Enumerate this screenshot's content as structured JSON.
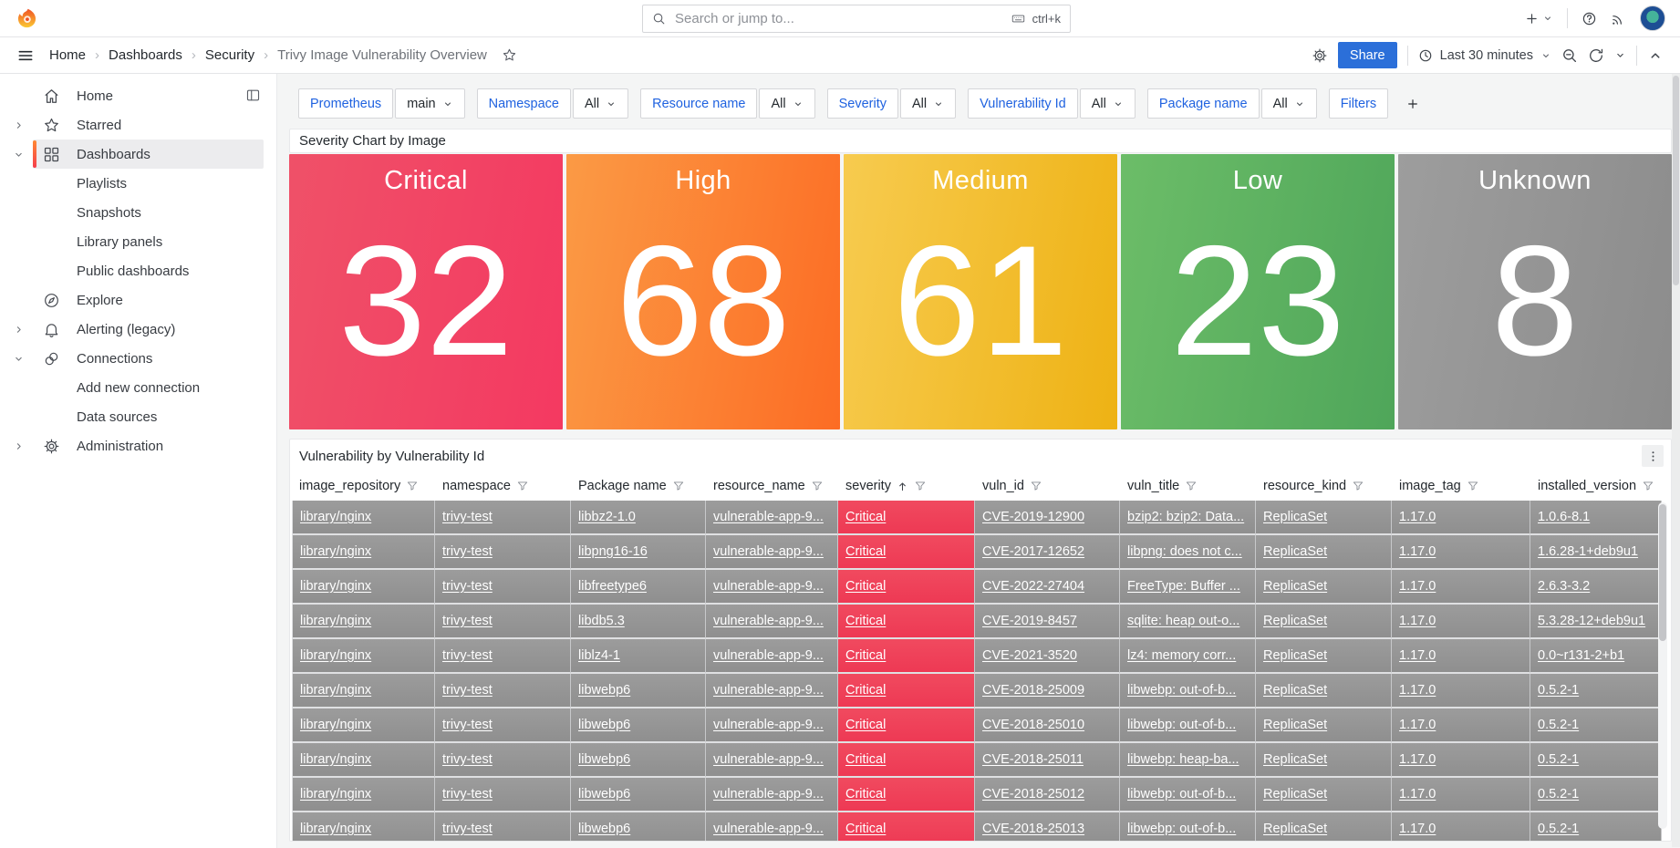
{
  "topnav": {
    "search_placeholder": "Search or jump to...",
    "search_shortcut": "ctrl+k"
  },
  "breadcrumb": [
    "Home",
    "Dashboards",
    "Security",
    "Trivy Image Vulnerability Overview"
  ],
  "toolbar": {
    "share_label": "Share",
    "time_range": "Last 30 minutes"
  },
  "sidebar": {
    "items": [
      {
        "label": "Home",
        "icon": "home-icon",
        "chevron": null,
        "active": false,
        "child": false
      },
      {
        "label": "Starred",
        "icon": "star-icon",
        "chevron": "right",
        "active": false,
        "child": false
      },
      {
        "label": "Dashboards",
        "icon": "apps-icon",
        "chevron": "down",
        "active": true,
        "child": false
      },
      {
        "label": "Playlists",
        "icon": null,
        "chevron": null,
        "active": false,
        "child": true
      },
      {
        "label": "Snapshots",
        "icon": null,
        "chevron": null,
        "active": false,
        "child": true
      },
      {
        "label": "Library panels",
        "icon": null,
        "chevron": null,
        "active": false,
        "child": true
      },
      {
        "label": "Public dashboards",
        "icon": null,
        "chevron": null,
        "active": false,
        "child": true
      },
      {
        "label": "Explore",
        "icon": "compass-icon",
        "chevron": null,
        "active": false,
        "child": false
      },
      {
        "label": "Alerting (legacy)",
        "icon": "bell-icon",
        "chevron": "right",
        "active": false,
        "child": false
      },
      {
        "label": "Connections",
        "icon": "link-icon",
        "chevron": "down",
        "active": false,
        "child": false
      },
      {
        "label": "Add new connection",
        "icon": null,
        "chevron": null,
        "active": false,
        "child": true
      },
      {
        "label": "Data sources",
        "icon": null,
        "chevron": null,
        "active": false,
        "child": true
      },
      {
        "label": "Administration",
        "icon": "gear-icon",
        "chevron": "right",
        "active": false,
        "child": false
      }
    ]
  },
  "filters": {
    "chips": [
      {
        "label": "Prometheus",
        "value": "main"
      },
      {
        "label": "Namespace",
        "value": "All"
      },
      {
        "label": "Resource name",
        "value": "All"
      },
      {
        "label": "Severity",
        "value": "All"
      },
      {
        "label": "Vulnerability Id",
        "value": "All"
      },
      {
        "label": "Package name",
        "value": "All"
      }
    ],
    "filters_button": "Filters"
  },
  "severity_panel": {
    "title": "Severity Chart by Image",
    "tiles": [
      {
        "label": "Critical",
        "value": "32",
        "color_start": "#ef5168",
        "color_end": "#f43961"
      },
      {
        "label": "High",
        "value": "68",
        "color_start": "#fb9a45",
        "color_end": "#fc6c24"
      },
      {
        "label": "Medium",
        "value": "61",
        "color_start": "#f7cb4f",
        "color_end": "#eeb214"
      },
      {
        "label": "Low",
        "value": "23",
        "color_start": "#6cbd68",
        "color_end": "#4fa65a"
      },
      {
        "label": "Unknown",
        "value": "8",
        "color_start": "#9d9d9d",
        "color_end": "#8c8c8c"
      }
    ]
  },
  "table_panel": {
    "title": "Vulnerability by Vulnerability Id",
    "columns": [
      {
        "label": "image_repository",
        "sort": null
      },
      {
        "label": "namespace",
        "sort": null
      },
      {
        "label": "Package name",
        "sort": null
      },
      {
        "label": "resource_name",
        "sort": null
      },
      {
        "label": "severity",
        "sort": "asc"
      },
      {
        "label": "vuln_id",
        "sort": null
      },
      {
        "label": "vuln_title",
        "sort": null
      },
      {
        "label": "resource_kind",
        "sort": null
      },
      {
        "label": "image_tag",
        "sort": null
      },
      {
        "label": "installed_version",
        "sort": null
      }
    ],
    "rows": [
      [
        "library/nginx",
        "trivy-test",
        "libbz2-1.0",
        "vulnerable-app-9...",
        "Critical",
        "CVE-2019-12900",
        "bzip2: bzip2: Data...",
        "ReplicaSet",
        "1.17.0",
        "1.0.6-8.1"
      ],
      [
        "library/nginx",
        "trivy-test",
        "libpng16-16",
        "vulnerable-app-9...",
        "Critical",
        "CVE-2017-12652",
        "libpng: does not c...",
        "ReplicaSet",
        "1.17.0",
        "1.6.28-1+deb9u1"
      ],
      [
        "library/nginx",
        "trivy-test",
        "libfreetype6",
        "vulnerable-app-9...",
        "Critical",
        "CVE-2022-27404",
        "FreeType: Buffer ...",
        "ReplicaSet",
        "1.17.0",
        "2.6.3-3.2"
      ],
      [
        "library/nginx",
        "trivy-test",
        "libdb5.3",
        "vulnerable-app-9...",
        "Critical",
        "CVE-2019-8457",
        "sqlite: heap out-o...",
        "ReplicaSet",
        "1.17.0",
        "5.3.28-12+deb9u1"
      ],
      [
        "library/nginx",
        "trivy-test",
        "liblz4-1",
        "vulnerable-app-9...",
        "Critical",
        "CVE-2021-3520",
        "lz4: memory corr...",
        "ReplicaSet",
        "1.17.0",
        "0.0~r131-2+b1"
      ],
      [
        "library/nginx",
        "trivy-test",
        "libwebp6",
        "vulnerable-app-9...",
        "Critical",
        "CVE-2018-25009",
        "libwebp: out-of-b...",
        "ReplicaSet",
        "1.17.0",
        "0.5.2-1"
      ],
      [
        "library/nginx",
        "trivy-test",
        "libwebp6",
        "vulnerable-app-9...",
        "Critical",
        "CVE-2018-25010",
        "libwebp: out-of-b...",
        "ReplicaSet",
        "1.17.0",
        "0.5.2-1"
      ],
      [
        "library/nginx",
        "trivy-test",
        "libwebp6",
        "vulnerable-app-9...",
        "Critical",
        "CVE-2018-25011",
        "libwebp: heap-ba...",
        "ReplicaSet",
        "1.17.0",
        "0.5.2-1"
      ],
      [
        "library/nginx",
        "trivy-test",
        "libwebp6",
        "vulnerable-app-9...",
        "Critical",
        "CVE-2018-25012",
        "libwebp: out-of-b...",
        "ReplicaSet",
        "1.17.0",
        "0.5.2-1"
      ],
      [
        "library/nginx",
        "trivy-test",
        "libwebp6",
        "vulnerable-app-9...",
        "Critical",
        "CVE-2018-25013",
        "libwebp: out-of-b...",
        "ReplicaSet",
        "1.17.0",
        "0.5.2-1"
      ]
    ]
  },
  "colors": {
    "accent_blue": "#1f62e0",
    "share_blue": "#2b6fd9",
    "severity_red": "#ef4256",
    "active_indicator_orange": "#f55f3e",
    "table_cell_gray": "#969696"
  }
}
